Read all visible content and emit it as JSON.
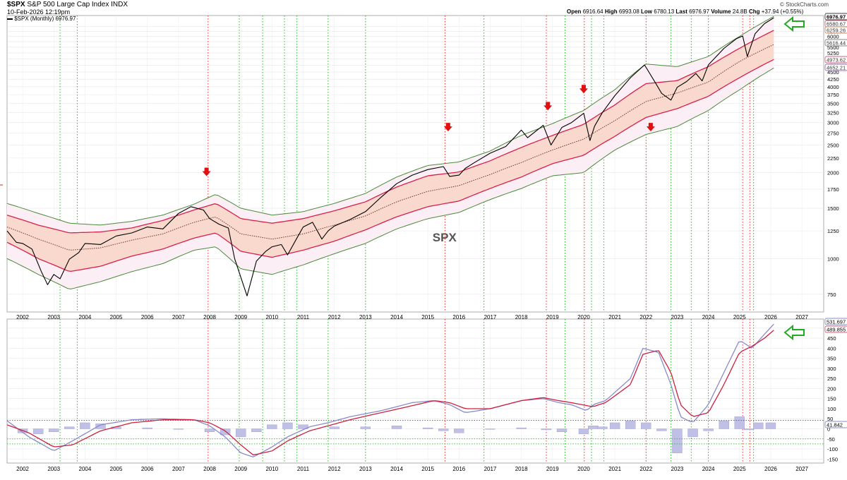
{
  "header": {
    "symbol": "$SPX",
    "name": "S&P 500 Large Cap Index",
    "exchange": "INDX",
    "date": "10-Feb-2026 12:19pm",
    "legend_line": "$SPX (Monthly) 6976.97",
    "copyright": "© StockCharts.com",
    "quote": {
      "open_label": "Open",
      "open": "6916.64",
      "high_label": "High",
      "high": "6993.08",
      "low_label": "Low",
      "low": "6780.13",
      "last_label": "Last",
      "last": "6976.97",
      "volume_label": "Volume",
      "volume": "24.8B",
      "chg_label": "Chg",
      "chg": "+37.94 (+0.55%)"
    }
  },
  "chart_data": [
    {
      "type": "line",
      "panel": "price",
      "label": "SPX",
      "x_ticks": [
        "2002",
        "2003",
        "2004",
        "2005",
        "2006",
        "2007",
        "2008",
        "2009",
        "2010",
        "2011",
        "2012",
        "2013",
        "2014",
        "2015",
        "2016",
        "2017",
        "2018",
        "2019",
        "2020",
        "2021",
        "2022",
        "2023",
        "2024",
        "2025",
        "2026",
        "2027"
      ],
      "y_ticks": [
        750,
        1000,
        1250,
        1500,
        1750,
        2000,
        2250,
        2500,
        2750,
        3000,
        3250,
        3500,
        3750,
        4000,
        4250,
        4500,
        4750,
        5000,
        5250,
        5500,
        5750,
        6000,
        6250,
        6500
      ],
      "ylim": [
        650,
        7100
      ],
      "grid": true,
      "price_labels": [
        "6976.97",
        "6580.67",
        "6259.26",
        "5616.44",
        "4973.62",
        "4652.21"
      ],
      "series": [
        {
          "name": "$SPX (Monthly)",
          "color": "#000000",
          "x": [
            2001.5,
            2001.8,
            2002.0,
            2002.3,
            2002.6,
            2002.8,
            2003.0,
            2003.2,
            2003.5,
            2003.8,
            2004.0,
            2004.5,
            2005.0,
            2005.5,
            2006.0,
            2006.5,
            2007.0,
            2007.4,
            2007.8,
            2008.0,
            2008.3,
            2008.6,
            2008.8,
            2009.0,
            2009.2,
            2009.5,
            2009.8,
            2010.0,
            2010.3,
            2010.5,
            2010.8,
            2011.0,
            2011.3,
            2011.6,
            2011.8,
            2012.0,
            2012.5,
            2013.0,
            2013.5,
            2014.0,
            2014.5,
            2015.0,
            2015.5,
            2015.7,
            2016.0,
            2016.2,
            2016.5,
            2017.0,
            2017.5,
            2018.0,
            2018.2,
            2018.7,
            2018.95,
            2019.3,
            2019.6,
            2020.0,
            2020.2,
            2020.35,
            2020.6,
            2021.0,
            2021.5,
            2021.95,
            2022.3,
            2022.5,
            2022.8,
            2023.0,
            2023.3,
            2023.6,
            2023.8,
            2024.0,
            2024.5,
            2024.9,
            2025.1,
            2025.25,
            2025.5,
            2025.8,
            2026.1
          ],
          "y": [
            1250,
            1140,
            1130,
            1080,
            900,
            810,
            880,
            850,
            995,
            1050,
            1130,
            1120,
            1200,
            1230,
            1290,
            1270,
            1440,
            1520,
            1480,
            1380,
            1320,
            1280,
            1000,
            860,
            740,
            980,
            1060,
            1100,
            1120,
            1030,
            1180,
            1290,
            1340,
            1170,
            1250,
            1300,
            1370,
            1460,
            1640,
            1830,
            1960,
            2050,
            2100,
            1940,
            1960,
            2070,
            2170,
            2340,
            2470,
            2820,
            2650,
            2930,
            2500,
            2880,
            2990,
            3230,
            2590,
            2910,
            3250,
            3720,
            4300,
            4770,
            4130,
            3790,
            3590,
            3980,
            4170,
            4450,
            4190,
            4770,
            5450,
            5890,
            6020,
            5100,
            6130,
            6650,
            6977
          ]
        },
        {
          "name": "Upper Keltner Band",
          "color": "#4a8a3a",
          "x": [
            2001.5,
            2002.5,
            2003.5,
            2004.5,
            2005.5,
            2006.5,
            2007.5,
            2008.2,
            2009.0,
            2010.0,
            2011.0,
            2012.0,
            2013.0,
            2014.0,
            2015.0,
            2016.0,
            2017.0,
            2018.0,
            2019.0,
            2020.0,
            2021.0,
            2022.0,
            2023.0,
            2024.0,
            2025.0,
            2026.1
          ],
          "y": [
            1560,
            1440,
            1330,
            1310,
            1350,
            1420,
            1550,
            1680,
            1500,
            1420,
            1460,
            1560,
            1690,
            1930,
            2120,
            2180,
            2380,
            2700,
            2970,
            3300,
            3900,
            4800,
            4700,
            5100,
            6000,
            7050
          ]
        },
        {
          "name": "Upper Channel",
          "color": "#d8204a",
          "x": [
            2001.5,
            2002.5,
            2003.5,
            2004.5,
            2005.5,
            2006.5,
            2007.5,
            2008.2,
            2009.0,
            2010.0,
            2011.0,
            2012.0,
            2013.0,
            2014.0,
            2015.0,
            2016.0,
            2017.0,
            2018.0,
            2019.0,
            2020.0,
            2021.0,
            2022.0,
            2023.0,
            2024.0,
            2025.0,
            2026.1
          ],
          "y": [
            1420,
            1310,
            1230,
            1240,
            1280,
            1360,
            1480,
            1560,
            1380,
            1330,
            1380,
            1470,
            1580,
            1780,
            1950,
            2010,
            2200,
            2450,
            2700,
            2950,
            3450,
            4100,
            4200,
            4700,
            5450,
            6300
          ]
        },
        {
          "name": "Middle Line",
          "color": "#6a3a2a",
          "x": [
            2001.5,
            2002.5,
            2003.5,
            2004.5,
            2005.5,
            2006.5,
            2007.5,
            2008.2,
            2009.0,
            2010.0,
            2011.0,
            2012.0,
            2013.0,
            2014.0,
            2015.0,
            2016.0,
            2017.0,
            2018.0,
            2019.0,
            2020.0,
            2021.0,
            2022.0,
            2023.0,
            2024.0,
            2025.0,
            2026.1
          ],
          "y": [
            1290,
            1170,
            1070,
            1090,
            1160,
            1220,
            1340,
            1400,
            1220,
            1170,
            1220,
            1310,
            1410,
            1580,
            1720,
            1800,
            1970,
            2170,
            2400,
            2620,
            3040,
            3550,
            3800,
            4150,
            4900,
            5620
          ]
        },
        {
          "name": "Lower Channel",
          "color": "#d8204a",
          "x": [
            2001.5,
            2002.5,
            2003.5,
            2004.5,
            2005.5,
            2006.5,
            2007.5,
            2008.2,
            2009.0,
            2010.0,
            2011.0,
            2012.0,
            2013.0,
            2014.0,
            2015.0,
            2016.0,
            2017.0,
            2018.0,
            2019.0,
            2020.0,
            2021.0,
            2022.0,
            2023.0,
            2024.0,
            2025.0,
            2026.1
          ],
          "y": [
            1140,
            1000,
            900,
            940,
            1020,
            1080,
            1180,
            1230,
            1060,
            1010,
            1070,
            1150,
            1260,
            1400,
            1520,
            1590,
            1760,
            1930,
            2150,
            2300,
            2680,
            3120,
            3350,
            3700,
            4300,
            4980
          ]
        },
        {
          "name": "Lower Keltner Band",
          "color": "#4a8a3a",
          "x": [
            2001.5,
            2002.5,
            2003.5,
            2004.5,
            2005.5,
            2006.5,
            2007.5,
            2008.2,
            2009.0,
            2010.0,
            2011.0,
            2012.0,
            2013.0,
            2014.0,
            2015.0,
            2016.0,
            2017.0,
            2018.0,
            2019.0,
            2020.0,
            2021.0,
            2022.0,
            2023.0,
            2024.0,
            2025.0,
            2026.1
          ],
          "y": [
            1000,
            880,
            780,
            830,
            900,
            960,
            1070,
            1100,
            920,
            880,
            950,
            1040,
            1130,
            1270,
            1380,
            1450,
            1610,
            1760,
            1950,
            2000,
            2400,
            2720,
            2900,
            3300,
            3900,
            4650
          ]
        }
      ],
      "annotations": {
        "text": "SPX",
        "red_arrows_x": [
          2007.9,
          2015.65,
          2018.85,
          2020.0,
          2022.15
        ],
        "red_arrows_y": [
          2000,
          2870,
          3400,
          3900,
          2870
        ],
        "green_arrow": true
      }
    },
    {
      "type": "line",
      "panel": "indicator",
      "x_ticks": [
        "2002",
        "2003",
        "2004",
        "2005",
        "2006",
        "2007",
        "2008",
        "2009",
        "2010",
        "2011",
        "2012",
        "2013",
        "2014",
        "2015",
        "2016",
        "2017",
        "2018",
        "2019",
        "2020",
        "2021",
        "2022",
        "2023",
        "2024",
        "2025",
        "2026",
        "2027"
      ],
      "y_ticks": [
        -150,
        -100,
        -50,
        0,
        50,
        100,
        150,
        200,
        250,
        300,
        350,
        400,
        450,
        500
      ],
      "ylim": [
        -170,
        545
      ],
      "grid": true,
      "price_labels": [
        "531.697",
        "489.855",
        "41.842"
      ],
      "reference_lines": {
        "red": 41.842,
        "green": [
          -50,
          -75
        ]
      },
      "series": [
        {
          "name": "Indicator Line",
          "color": "#8a8acc",
          "x": [
            2001.5,
            2002.2,
            2003.0,
            2003.6,
            2004.5,
            2005.5,
            2006.5,
            2007.5,
            2008.0,
            2008.5,
            2009.0,
            2009.4,
            2010.0,
            2010.5,
            2011.2,
            2011.8,
            2012.5,
            2013.5,
            2014.5,
            2015.2,
            2015.7,
            2016.2,
            2017.0,
            2018.0,
            2018.7,
            2019.2,
            2019.6,
            2020.1,
            2020.3,
            2020.7,
            2021.5,
            2021.9,
            2022.4,
            2022.8,
            2023.1,
            2023.5,
            2024.0,
            2024.5,
            2025.0,
            2025.4,
            2025.8,
            2026.1
          ],
          "y": [
            40,
            -40,
            -110,
            -60,
            20,
            45,
            50,
            45,
            15,
            -40,
            -120,
            -140,
            -90,
            -40,
            10,
            30,
            60,
            90,
            130,
            140,
            120,
            80,
            100,
            140,
            150,
            130,
            120,
            90,
            120,
            140,
            250,
            400,
            380,
            220,
            60,
            30,
            120,
            280,
            440,
            400,
            470,
            520
          ]
        },
        {
          "name": "Signal Line",
          "color": "#cc2040",
          "x": [
            2001.5,
            2002.2,
            2003.0,
            2003.6,
            2004.5,
            2005.5,
            2006.5,
            2007.5,
            2008.0,
            2008.5,
            2009.0,
            2009.4,
            2010.0,
            2010.5,
            2011.2,
            2011.8,
            2012.5,
            2013.5,
            2014.5,
            2015.2,
            2015.7,
            2016.2,
            2017.0,
            2018.0,
            2018.7,
            2019.2,
            2019.6,
            2020.1,
            2020.3,
            2020.7,
            2021.5,
            2021.9,
            2022.4,
            2022.8,
            2023.1,
            2023.5,
            2024.0,
            2024.5,
            2025.0,
            2025.4,
            2025.8,
            2026.1
          ],
          "y": [
            20,
            -20,
            -90,
            -80,
            -10,
            30,
            45,
            45,
            30,
            -10,
            -80,
            -130,
            -110,
            -60,
            -10,
            15,
            45,
            80,
            115,
            140,
            130,
            100,
            100,
            140,
            155,
            140,
            130,
            115,
            110,
            130,
            220,
            370,
            390,
            280,
            120,
            60,
            80,
            220,
            380,
            410,
            450,
            490
          ]
        },
        {
          "name": "Histogram",
          "color": "#8a8acc",
          "type": "bar",
          "x": [
            2002.0,
            2002.5,
            2003.0,
            2003.5,
            2004.0,
            2004.5,
            2005.0,
            2006.0,
            2007.0,
            2008.0,
            2008.5,
            2009.0,
            2009.5,
            2010.0,
            2010.5,
            2011.0,
            2012.0,
            2013.0,
            2014.0,
            2015.0,
            2015.5,
            2016.0,
            2017.0,
            2018.0,
            2018.8,
            2019.3,
            2020.0,
            2020.3,
            2020.6,
            2021.0,
            2021.5,
            2022.0,
            2022.5,
            2023.0,
            2023.5,
            2024.0,
            2024.5,
            2025.0,
            2025.3,
            2025.6,
            2026.0
          ],
          "y": [
            -20,
            -25,
            -15,
            10,
            30,
            25,
            10,
            5,
            0,
            -15,
            -30,
            -40,
            -15,
            20,
            30,
            20,
            10,
            10,
            15,
            5,
            -10,
            -20,
            0,
            5,
            -5,
            -15,
            -25,
            15,
            10,
            30,
            40,
            30,
            -10,
            -120,
            -40,
            -10,
            40,
            60,
            -5,
            30,
            30
          ]
        }
      ]
    }
  ]
}
